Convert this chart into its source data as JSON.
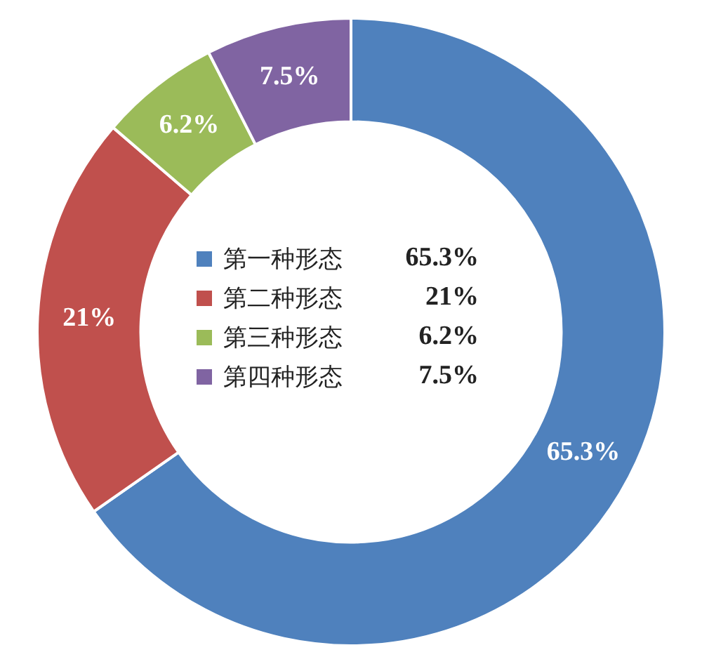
{
  "chart_data": {
    "type": "donut",
    "categories": [
      "第一种形态",
      "第二种形态",
      "第三种形态",
      "第四种形态"
    ],
    "values": [
      65.3,
      21,
      6.2,
      7.5
    ],
    "colors": [
      "#4f81bd",
      "#c0504d",
      "#9bbb59",
      "#8064a2"
    ],
    "value_labels": [
      "65.3%",
      "21%",
      "6.2%",
      "7.5%"
    ],
    "legend": "center"
  }
}
